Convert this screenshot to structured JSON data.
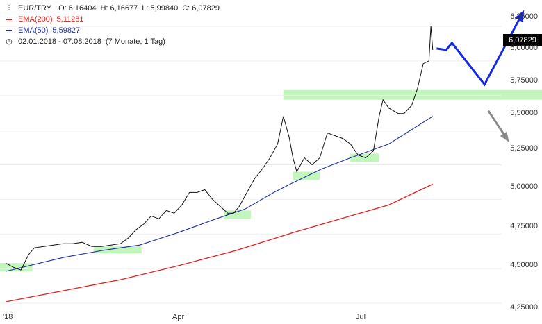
{
  "chart_data": {
    "type": "line",
    "title": "EUR/TRY",
    "ohlc": {
      "open_label": "O:",
      "open": "6,16404",
      "high_label": "H:",
      "high": "6,16677",
      "low_label": "L:",
      "low": "5,99840",
      "close_label": "C:",
      "close": "6,07829"
    },
    "ema200": {
      "name": "EMA(200)",
      "value": "5,11281",
      "color": "#e31e1e"
    },
    "ema50": {
      "name": "EMA(50)",
      "value": "5,59827",
      "color": "#1f2fa5"
    },
    "period": "02.01.2018 - 07.08.2018",
    "period_note": "(7 Monate, 1 Tag)",
    "last_price": "6,07829",
    "ylim": [
      4.2,
      6.35
    ],
    "y_ticks": [
      "4,25000",
      "4,50000",
      "4,75000",
      "5,00000",
      "5,25000",
      "5,50000",
      "5,75000",
      "6,00000",
      "6,25000"
    ],
    "x_ticks": [
      {
        "label": "'18",
        "day": 0
      },
      {
        "label": "Apr",
        "day": 89
      },
      {
        "label": "Jul",
        "day": 180
      }
    ],
    "x_range_days": [
      0,
      280
    ],
    "price_series": [
      [
        0,
        4.54
      ],
      [
        4,
        4.51
      ],
      [
        8,
        4.49
      ],
      [
        12,
        4.6
      ],
      [
        15,
        4.65
      ],
      [
        20,
        4.66
      ],
      [
        25,
        4.67
      ],
      [
        30,
        4.68
      ],
      [
        35,
        4.68
      ],
      [
        40,
        4.69
      ],
      [
        45,
        4.66
      ],
      [
        50,
        4.66
      ],
      [
        55,
        4.67
      ],
      [
        60,
        4.68
      ],
      [
        64,
        4.72
      ],
      [
        68,
        4.78
      ],
      [
        72,
        4.82
      ],
      [
        76,
        4.88
      ],
      [
        80,
        4.86
      ],
      [
        84,
        4.92
      ],
      [
        88,
        4.9
      ],
      [
        92,
        4.96
      ],
      [
        96,
        5.05
      ],
      [
        100,
        5.05
      ],
      [
        104,
        5.07
      ],
      [
        108,
        5.0
      ],
      [
        112,
        4.95
      ],
      [
        116,
        4.9
      ],
      [
        119,
        4.9
      ],
      [
        122,
        4.95
      ],
      [
        126,
        5.05
      ],
      [
        130,
        5.15
      ],
      [
        134,
        5.22
      ],
      [
        138,
        5.3
      ],
      [
        142,
        5.4
      ],
      [
        145,
        5.6
      ],
      [
        148,
        5.45
      ],
      [
        150,
        5.3
      ],
      [
        152,
        5.2
      ],
      [
        156,
        5.3
      ],
      [
        160,
        5.25
      ],
      [
        164,
        5.3
      ],
      [
        168,
        5.48
      ],
      [
        172,
        5.46
      ],
      [
        176,
        5.44
      ],
      [
        180,
        5.4
      ],
      [
        184,
        5.32
      ],
      [
        188,
        5.3
      ],
      [
        192,
        5.35
      ],
      [
        195,
        5.6
      ],
      [
        197,
        5.72
      ],
      [
        200,
        5.66
      ],
      [
        205,
        5.62
      ],
      [
        208,
        5.62
      ],
      [
        212,
        5.68
      ],
      [
        215,
        5.8
      ],
      [
        218,
        5.98
      ],
      [
        221,
        6.0
      ],
      [
        222,
        6.25
      ],
      [
        223,
        6.08
      ]
    ],
    "ema200_series": [
      [
        0,
        4.26
      ],
      [
        30,
        4.34
      ],
      [
        60,
        4.42
      ],
      [
        90,
        4.52
      ],
      [
        120,
        4.63
      ],
      [
        150,
        4.76
      ],
      [
        180,
        4.88
      ],
      [
        200,
        4.96
      ],
      [
        223,
        5.11
      ]
    ],
    "ema50_series": [
      [
        0,
        4.48
      ],
      [
        30,
        4.58
      ],
      [
        50,
        4.63
      ],
      [
        70,
        4.67
      ],
      [
        90,
        4.76
      ],
      [
        110,
        4.86
      ],
      [
        125,
        4.93
      ],
      [
        140,
        5.05
      ],
      [
        150,
        5.12
      ],
      [
        165,
        5.22
      ],
      [
        180,
        5.3
      ],
      [
        200,
        5.4
      ],
      [
        223,
        5.6
      ]
    ],
    "support_zones": [
      {
        "day_from": -3,
        "day_to": 14,
        "low": 4.48,
        "high": 4.54
      },
      {
        "day_from": 46,
        "day_to": 71,
        "low": 4.61,
        "high": 4.66
      },
      {
        "day_from": 114,
        "day_to": 128,
        "low": 4.86,
        "high": 4.92
      },
      {
        "day_from": 150,
        "day_to": 164,
        "low": 5.14,
        "high": 5.2
      },
      {
        "day_from": 180,
        "day_to": 195,
        "low": 5.27,
        "high": 5.33
      }
    ],
    "resistance_zone": {
      "day_from": 145,
      "day_to": 280,
      "low": 5.72,
      "high": 5.79
    },
    "scenario_bullish": {
      "points": [
        [
          225,
          6.09
        ],
        [
          230,
          6.08
        ],
        [
          233,
          6.13
        ],
        [
          250,
          5.83
        ],
        [
          270,
          6.35
        ]
      ],
      "color": "#1428e6"
    },
    "scenario_bearish": {
      "points": [
        [
          252,
          5.64
        ],
        [
          262,
          5.43
        ]
      ],
      "color": "#8a8a8a"
    }
  }
}
